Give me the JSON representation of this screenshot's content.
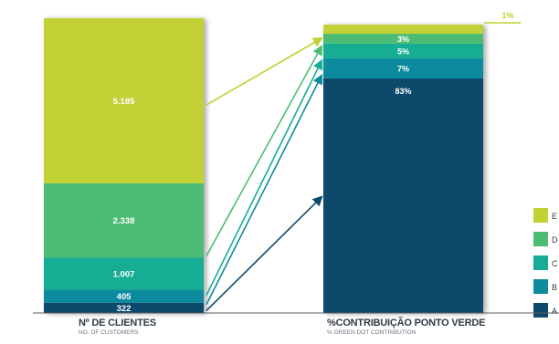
{
  "chart_data": {
    "type": "stacked-bar-comparison",
    "categories": [
      "E",
      "D",
      "C",
      "B",
      "A"
    ],
    "colors": {
      "E": "#c2d134",
      "D": "#4dbc74",
      "C": "#17ad94",
      "B": "#0f8b9e",
      "A": "#0c4a6b"
    },
    "bars": [
      {
        "name": "customers",
        "values": {
          "E": 5185,
          "D": 2338,
          "C": 1007,
          "B": 405,
          "A": 322
        },
        "labels": {
          "E": "5.185",
          "D": "2.338",
          "C": "1.007",
          "B": "405",
          "A": "322"
        }
      },
      {
        "name": "contribution",
        "values": {
          "E": 1,
          "D": 3,
          "C": 5,
          "B": 7,
          "A": 83
        },
        "labels": {
          "E": "1%",
          "D": "3%",
          "C": "5%",
          "B": "7%",
          "A": "83%"
        }
      }
    ],
    "legend_position": "right"
  },
  "captions": {
    "left_main": "Nº DE CLIENTES",
    "left_sub": "NO. OF CUSTOMERS",
    "right_main": "%CONTRIBUIÇÃO PONTO VERDE",
    "right_sub": "% GREEN DOT CONTRIBUTION"
  }
}
